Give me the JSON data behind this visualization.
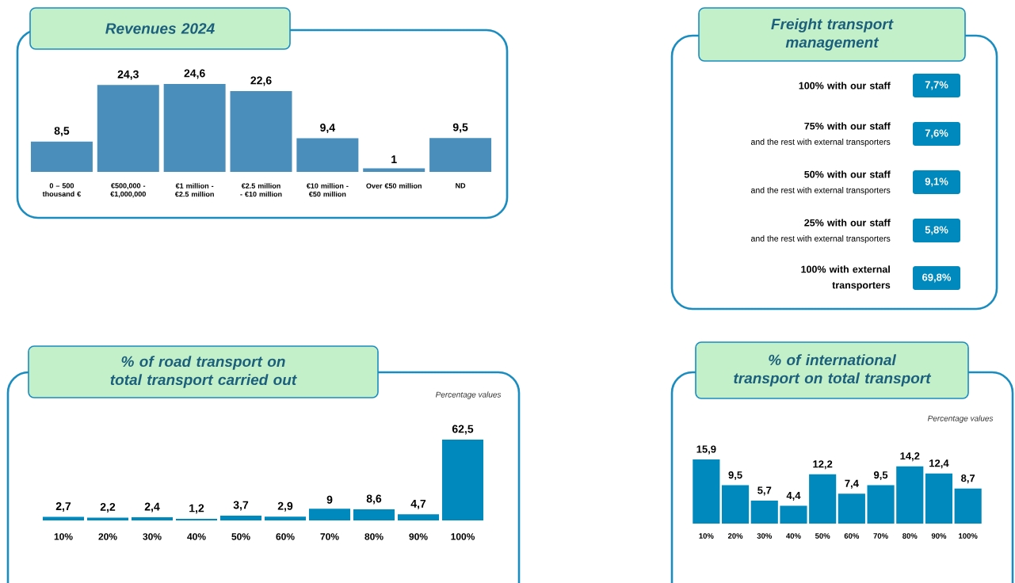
{
  "chart_data": [
    {
      "type": "bar",
      "title": "Revenues 2024",
      "color": "#4a8fbb",
      "categories": [
        "0 – 500 thousand €",
        "€500,000 - €1,000,000",
        "€1 million - €2.5 million",
        "€2.5 million - €10 million",
        "€10 million - €50 million",
        "Over €50 million",
        "ND"
      ],
      "values": [
        8.5,
        24.3,
        24.6,
        22.6,
        9.4,
        1,
        9.5
      ],
      "value_labels": [
        "8,5",
        "24,3",
        "24,6",
        "22,6",
        "9,4",
        "1",
        "9,5"
      ]
    },
    {
      "type": "other",
      "title": "Freight transport management",
      "color": "#0089bd",
      "categories": [
        "100% with our staff",
        "75% with our staff",
        "50% with our staff",
        "25% with our staff",
        "100% with external transporters"
      ],
      "value_labels": [
        "7,7%",
        "7,6%",
        "9,1%",
        "5,8%",
        "69,8%"
      ],
      "annotations": [
        "and the rest with external transporters",
        "and the rest with external transporters",
        "and the rest with external transporters"
      ]
    },
    {
      "type": "bar",
      "title": "% of road transport on total transport carried out",
      "color": "#0089bd",
      "categories": [
        "10%",
        "20%",
        "30%",
        "40%",
        "50%",
        "60%",
        "70%",
        "80%",
        "90%",
        "100%"
      ],
      "values": [
        2.7,
        2.2,
        2.4,
        1.2,
        3.7,
        2.9,
        9,
        8.6,
        4.7,
        62.5
      ],
      "value_labels": [
        "2,7",
        "2,2",
        "2,4",
        "1,2",
        "3,7",
        "2,9",
        "9",
        "8,6",
        "4,7",
        "62,5"
      ],
      "annotations": [
        "Percentage values"
      ]
    },
    {
      "type": "bar",
      "title": "% of international transport on total transport",
      "color": "#0089bd",
      "categories": [
        "10%",
        "20%",
        "30%",
        "40%",
        "50%",
        "60%",
        "70%",
        "80%",
        "90%",
        "100%"
      ],
      "values": [
        15.9,
        9.5,
        5.7,
        4.4,
        12.2,
        7.4,
        9.5,
        14.2,
        12.4,
        8.7
      ],
      "value_labels": [
        "15,9",
        "9,5",
        "5,7",
        "4,4",
        "12,2",
        "7,4",
        "9,5",
        "14,2",
        "12,4",
        "8,7"
      ],
      "annotations": [
        "Percentage values"
      ]
    }
  ]
}
